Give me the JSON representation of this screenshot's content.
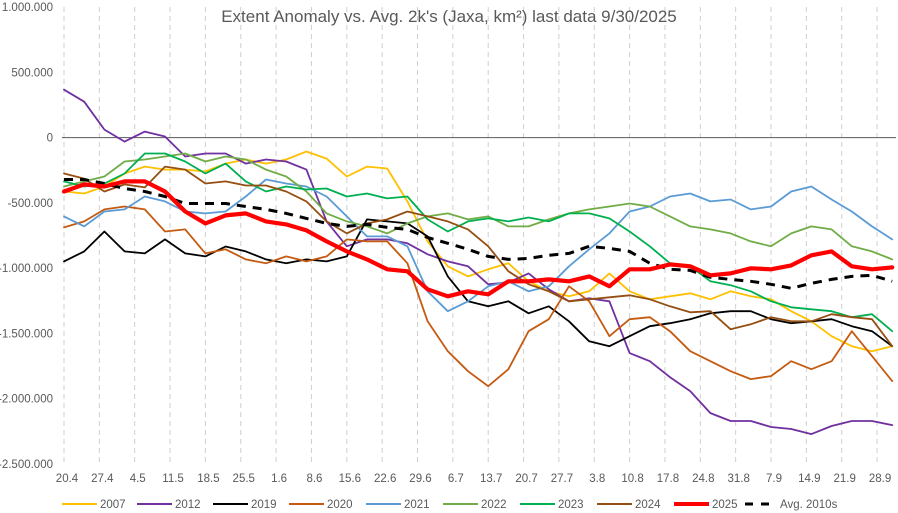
{
  "chart_data": {
    "type": "line",
    "title": "Extent Anomaly vs. Avg. 2k's (Jaxa, km²) last data 9/30/2025",
    "xlabel": "",
    "ylabel": "",
    "ylim": [
      -2500000,
      1000000
    ],
    "yticks": [
      1000000,
      500000,
      0,
      -500000,
      -1000000,
      -1500000,
      -2000000,
      -2500000
    ],
    "ytick_labels": [
      "1.000.000",
      "500.000",
      "0",
      "-500.000",
      "-1.000.000",
      "-1.500.000",
      "-2.000.000",
      "-2.500.000"
    ],
    "x_unit": "days since 20.4",
    "xlim": [
      0,
      164
    ],
    "x_tick_labels": [
      "20.4",
      "27.4",
      "4.5",
      "11.5",
      "18.5",
      "25.5",
      "1.6",
      "8.6",
      "15.6",
      "22.6",
      "29.6",
      "6.7",
      "13.7",
      "20.7",
      "27.7",
      "3.8",
      "10.8",
      "17.8",
      "24.8",
      "31.8",
      "7.9",
      "14.9",
      "21.9",
      "28.9"
    ],
    "x_tick_step_days": 7,
    "zero_line": true,
    "vertical_grid": "dashed",
    "legend_position": "bottom",
    "x": [
      0,
      4,
      8,
      12,
      16,
      20,
      24,
      28,
      32,
      36,
      40,
      44,
      48,
      52,
      56,
      60,
      64,
      68,
      72,
      76,
      80,
      84,
      88,
      92,
      96,
      100,
      104,
      108,
      112,
      116,
      120,
      124,
      128,
      132,
      136,
      140,
      144,
      148,
      152,
      156,
      160,
      164
    ],
    "series": [
      {
        "name": "2007",
        "color": "#ffc000",
        "width": 1.8,
        "dash": false,
        "values": [
          -413000,
          -428000,
          -375000,
          -275000,
          -222000,
          -245000,
          -245000,
          -260000,
          -199000,
          -168000,
          -199000,
          -168000,
          -107000,
          -161000,
          -298000,
          -222000,
          -237000,
          -489000,
          -795000,
          -986000,
          -1063000,
          -1009000,
          -963000,
          -1101000,
          -1177000,
          -1216000,
          -1177000,
          -1040000,
          -1177000,
          -1239000,
          -1216000,
          -1193000,
          -1239000,
          -1177000,
          -1216000,
          -1239000,
          -1330000,
          -1407000,
          -1521000,
          -1598000,
          -1636000,
          -1598000
        ]
      },
      {
        "name": "2012",
        "color": "#7030a0",
        "width": 1.8,
        "dash": false,
        "values": [
          367000,
          275000,
          61000,
          -31000,
          46000,
          8000,
          -145000,
          -122000,
          -122000,
          -199000,
          -168000,
          -183000,
          -245000,
          -642000,
          -833000,
          -780000,
          -780000,
          -810000,
          -894000,
          -948000,
          -986000,
          -1124000,
          -1109000,
          -1040000,
          -1162000,
          -1254000,
          -1231000,
          -1254000,
          -1651000,
          -1713000,
          -1835000,
          -1942000,
          -2110000,
          -2171000,
          -2171000,
          -2217000,
          -2232000,
          -2271000,
          -2209000,
          -2171000,
          -2171000,
          -2202000
        ]
      },
      {
        "name": "2019",
        "color": "#000000",
        "width": 1.8,
        "dash": false,
        "values": [
          -948000,
          -872000,
          -719000,
          -872000,
          -887000,
          -780000,
          -887000,
          -910000,
          -834000,
          -872000,
          -933000,
          -963000,
          -933000,
          -948000,
          -910000,
          -627000,
          -642000,
          -657000,
          -757000,
          -1063000,
          -1254000,
          -1292000,
          -1254000,
          -1346000,
          -1292000,
          -1407000,
          -1560000,
          -1598000,
          -1521000,
          -1445000,
          -1422000,
          -1391000,
          -1346000,
          -1330000,
          -1330000,
          -1391000,
          -1422000,
          -1407000,
          -1391000,
          -1445000,
          -1483000,
          -1598000
        ]
      },
      {
        "name": "2020",
        "color": "#c55a11",
        "width": 1.8,
        "dash": false,
        "values": [
          -688000,
          -642000,
          -550000,
          -528000,
          -550000,
          -719000,
          -703000,
          -887000,
          -856000,
          -933000,
          -963000,
          -910000,
          -948000,
          -910000,
          -780000,
          -795000,
          -795000,
          -963000,
          -1407000,
          -1636000,
          -1789000,
          -1904000,
          -1774000,
          -1483000,
          -1391000,
          -1139000,
          -1254000,
          -1521000,
          -1391000,
          -1376000,
          -1483000,
          -1636000,
          -1713000,
          -1789000,
          -1850000,
          -1827000,
          -1713000,
          -1774000,
          -1713000,
          -1483000,
          -1674000,
          -1865000
        ]
      },
      {
        "name": "2021",
        "color": "#5b9bd5",
        "width": 1.8,
        "dash": false,
        "values": [
          -604000,
          -680000,
          -566000,
          -550000,
          -451000,
          -489000,
          -566000,
          -581000,
          -566000,
          -451000,
          -321000,
          -352000,
          -375000,
          -451000,
          -604000,
          -757000,
          -757000,
          -833000,
          -1177000,
          -1330000,
          -1254000,
          -1139000,
          -1101000,
          -1177000,
          -1139000,
          -986000,
          -856000,
          -734000,
          -566000,
          -528000,
          -451000,
          -428000,
          -489000,
          -474000,
          -550000,
          -528000,
          -413000,
          -375000,
          -474000,
          -566000,
          -680000,
          -780000
        ]
      },
      {
        "name": "2022",
        "color": "#70ad47",
        "width": 1.8,
        "dash": false,
        "values": [
          -375000,
          -336000,
          -298000,
          -183000,
          -168000,
          -145000,
          -122000,
          -183000,
          -145000,
          -168000,
          -245000,
          -298000,
          -413000,
          -581000,
          -642000,
          -680000,
          -734000,
          -657000,
          -604000,
          -581000,
          -627000,
          -604000,
          -680000,
          -680000,
          -627000,
          -581000,
          -550000,
          -528000,
          -505000,
          -528000,
          -604000,
          -680000,
          -703000,
          -734000,
          -795000,
          -833000,
          -734000,
          -680000,
          -703000,
          -833000,
          -872000,
          -933000
        ]
      },
      {
        "name": "2023",
        "color": "#00b050",
        "width": 1.8,
        "dash": false,
        "values": [
          -336000,
          -375000,
          -352000,
          -275000,
          -122000,
          -122000,
          -183000,
          -275000,
          -199000,
          -336000,
          -413000,
          -375000,
          -398000,
          -390000,
          -451000,
          -428000,
          -466000,
          -451000,
          -627000,
          -719000,
          -642000,
          -619000,
          -642000,
          -612000,
          -642000,
          -581000,
          -581000,
          -619000,
          -719000,
          -833000,
          -963000,
          -986000,
          -1101000,
          -1131000,
          -1177000,
          -1254000,
          -1300000,
          -1315000,
          -1330000,
          -1376000,
          -1353000,
          -1483000
        ]
      },
      {
        "name": "2024",
        "color": "#954f12",
        "width": 1.8,
        "dash": false,
        "values": [
          -275000,
          -314000,
          -413000,
          -359000,
          -382000,
          -222000,
          -245000,
          -352000,
          -336000,
          -367000,
          -367000,
          -413000,
          -489000,
          -642000,
          -734000,
          -657000,
          -627000,
          -566000,
          -604000,
          -642000,
          -703000,
          -833000,
          -1024000,
          -1124000,
          -1177000,
          -1254000,
          -1239000,
          -1223000,
          -1208000,
          -1239000,
          -1292000,
          -1338000,
          -1330000,
          -1468000,
          -1430000,
          -1376000,
          -1407000,
          -1407000,
          -1353000,
          -1376000,
          -1391000,
          -1598000
        ]
      },
      {
        "name": "2025",
        "color": "#ff0000",
        "width": 4.2,
        "dash": false,
        "values": [
          -413000,
          -359000,
          -375000,
          -336000,
          -336000,
          -413000,
          -566000,
          -657000,
          -596000,
          -581000,
          -642000,
          -665000,
          -711000,
          -795000,
          -872000,
          -933000,
          -1009000,
          -1024000,
          -1162000,
          -1216000,
          -1177000,
          -1200000,
          -1101000,
          -1101000,
          -1086000,
          -1101000,
          -1063000,
          -1139000,
          -1009000,
          -1009000,
          -971000,
          -986000,
          -1055000,
          -1040000,
          -1001000,
          -1009000,
          -979000,
          -902000,
          -872000,
          -986000,
          -1009000,
          -994000
        ]
      },
      {
        "name": "Avg. 2010s",
        "color": "#000000",
        "width": 3,
        "dash": true,
        "values": [
          -321000,
          -321000,
          -352000,
          -390000,
          -413000,
          -451000,
          -505000,
          -505000,
          -505000,
          -528000,
          -550000,
          -581000,
          -619000,
          -657000,
          -680000,
          -665000,
          -688000,
          -703000,
          -765000,
          -810000,
          -856000,
          -910000,
          -933000,
          -925000,
          -902000,
          -887000,
          -833000,
          -849000,
          -872000,
          -963000,
          -1009000,
          -1017000,
          -1070000,
          -1086000,
          -1101000,
          -1124000,
          -1154000,
          -1116000,
          -1086000,
          -1063000,
          -1055000,
          -1101000
        ]
      }
    ]
  }
}
